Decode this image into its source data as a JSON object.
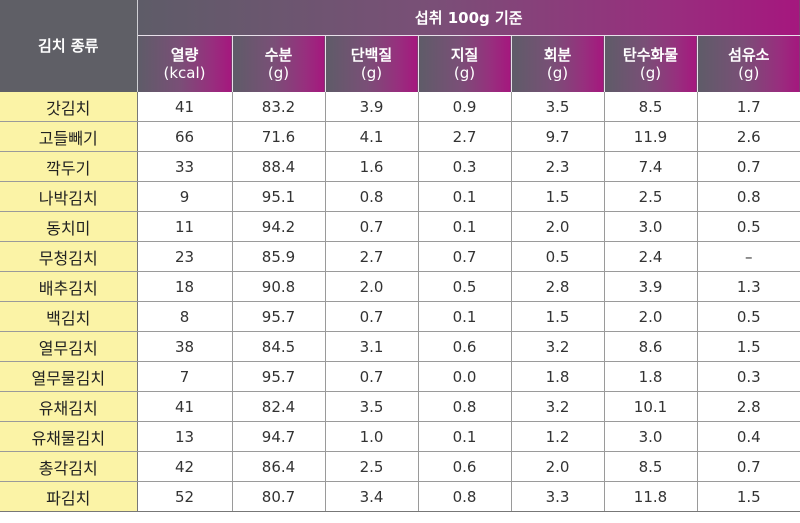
{
  "table": {
    "corner_label": "김치 종류",
    "group_label": "섭취 100g 기준",
    "columns": [
      {
        "name": "열량",
        "unit": "(kcal)"
      },
      {
        "name": "수분",
        "unit": "(g)"
      },
      {
        "name": "단백질",
        "unit": "(g)"
      },
      {
        "name": "지질",
        "unit": "(g)"
      },
      {
        "name": "회분",
        "unit": "(g)"
      },
      {
        "name": "탄수화물",
        "unit": "(g)"
      },
      {
        "name": "섬유소",
        "unit": "(g)"
      }
    ],
    "rows": [
      {
        "name": "갓김치",
        "values": [
          "41",
          "83.2",
          "3.9",
          "0.9",
          "3.5",
          "8.5",
          "1.7"
        ]
      },
      {
        "name": "고들빼기",
        "values": [
          "66",
          "71.6",
          "4.1",
          "2.7",
          "9.7",
          "11.9",
          "2.6"
        ]
      },
      {
        "name": "깍두기",
        "values": [
          "33",
          "88.4",
          "1.6",
          "0.3",
          "2.3",
          "7.4",
          "0.7"
        ]
      },
      {
        "name": "나박김치",
        "values": [
          "9",
          "95.1",
          "0.8",
          "0.1",
          "1.5",
          "2.5",
          "0.8"
        ]
      },
      {
        "name": "동치미",
        "values": [
          "11",
          "94.2",
          "0.7",
          "0.1",
          "2.0",
          "3.0",
          "0.5"
        ]
      },
      {
        "name": "무청김치",
        "values": [
          "23",
          "85.9",
          "2.7",
          "0.7",
          "0.5",
          "2.4",
          "–"
        ]
      },
      {
        "name": "배추김치",
        "values": [
          "18",
          "90.8",
          "2.0",
          "0.5",
          "2.8",
          "3.9",
          "1.3"
        ]
      },
      {
        "name": "백김치",
        "values": [
          "8",
          "95.7",
          "0.7",
          "0.1",
          "1.5",
          "2.0",
          "0.5"
        ]
      },
      {
        "name": "열무김치",
        "values": [
          "38",
          "84.5",
          "3.1",
          "0.6",
          "3.2",
          "8.6",
          "1.5"
        ]
      },
      {
        "name": "열무물김치",
        "values": [
          "7",
          "95.7",
          "0.7",
          "0.0",
          "1.8",
          "1.8",
          "0.3"
        ]
      },
      {
        "name": "유채김치",
        "values": [
          "41",
          "82.4",
          "3.5",
          "0.8",
          "3.2",
          "10.1",
          "2.8"
        ]
      },
      {
        "name": "유채물김치",
        "values": [
          "13",
          "94.7",
          "1.0",
          "0.1",
          "1.2",
          "3.0",
          "0.4"
        ]
      },
      {
        "name": "총각김치",
        "values": [
          "42",
          "86.4",
          "2.5",
          "0.6",
          "2.0",
          "8.5",
          "0.7"
        ]
      },
      {
        "name": "파김치",
        "values": [
          "52",
          "80.7",
          "3.4",
          "0.8",
          "3.3",
          "11.8",
          "1.5"
        ]
      }
    ]
  },
  "colors": {
    "header_dark": "#5f5f66",
    "header_accent": "#a5177e",
    "name_cell_bg": "#fbf3a6"
  }
}
